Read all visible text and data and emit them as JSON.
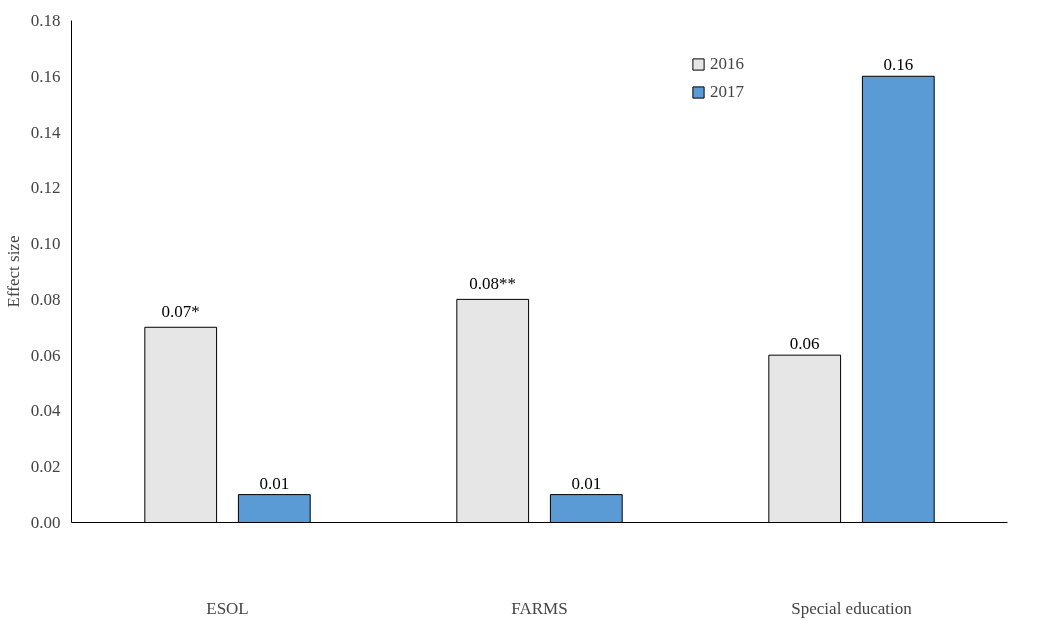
{
  "chart_data": {
    "type": "bar",
    "ylabel": "Effect size",
    "categories": [
      "ESOL",
      "FARMS",
      "Special education"
    ],
    "series": [
      {
        "name": "2016",
        "color": "#e7e6e6",
        "values": [
          0.07,
          0.08,
          0.06
        ],
        "value_labels": [
          "0.07*",
          "0.08**",
          "0.06"
        ]
      },
      {
        "name": "2017",
        "color": "#5b9bd5",
        "values": [
          0.01,
          0.01,
          0.16
        ],
        "value_labels": [
          "0.01",
          "0.01",
          "0.16"
        ]
      }
    ],
    "ylim": [
      0,
      0.18
    ],
    "yticks": [
      {
        "value": 0,
        "label": "0.00"
      },
      {
        "value": 0.02,
        "label": "0.02"
      },
      {
        "value": 0.04,
        "label": "0.04"
      },
      {
        "value": 0.06,
        "label": "0.06"
      },
      {
        "value": 0.08,
        "label": "0.08"
      },
      {
        "value": 0.1,
        "label": "0.10"
      },
      {
        "value": 0.12,
        "label": "0.12"
      },
      {
        "value": 0.14,
        "label": "0.14"
      },
      {
        "value": 0.16,
        "label": "0.16"
      },
      {
        "value": 0.18,
        "label": "0.18"
      }
    ],
    "grid": false,
    "legend": "top right"
  }
}
